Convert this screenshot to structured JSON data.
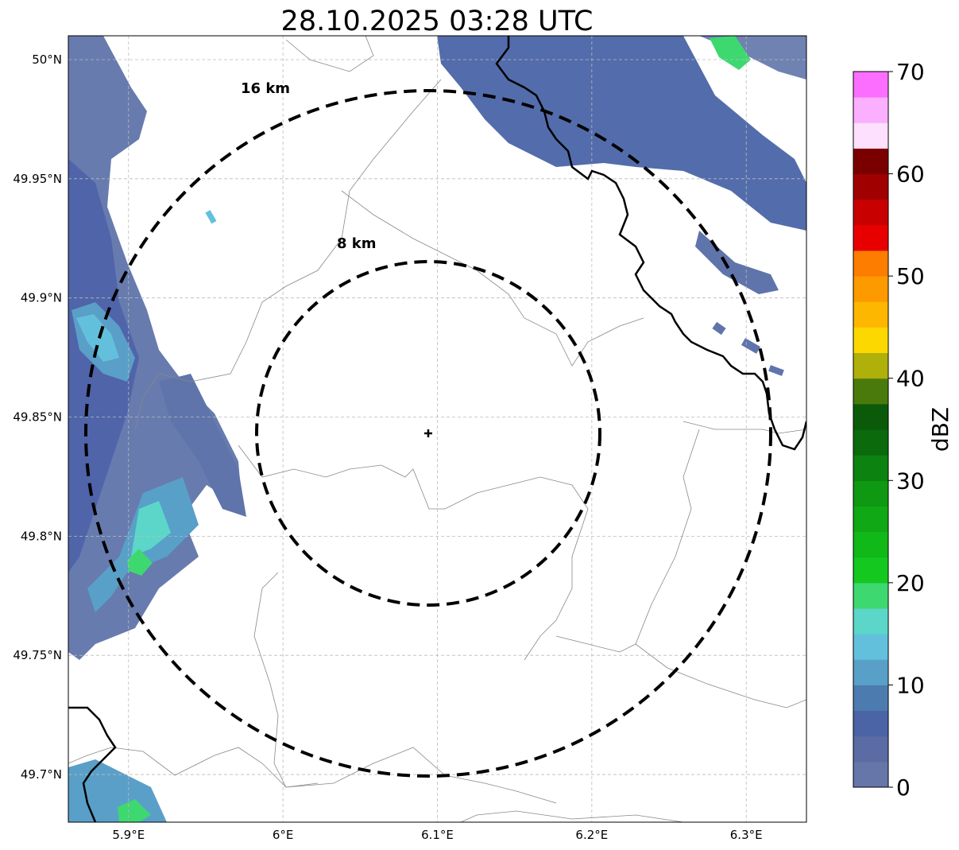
{
  "title": "28.10.2025 03:28 UTC",
  "map": {
    "lon_ticks": [
      "5.9°E",
      "6°E",
      "6.1°E",
      "6.2°E",
      "6.3°E"
    ],
    "lat_ticks": [
      "50°N",
      "49.95°N",
      "49.9°N",
      "49.85°N",
      "49.8°N",
      "49.75°N",
      "49.7°N"
    ],
    "lon_values": [
      5.9,
      6.0,
      6.1,
      6.2,
      6.3
    ],
    "lat_values": [
      50.0,
      49.95,
      49.9,
      49.85,
      49.8,
      49.75,
      49.7
    ],
    "extent": {
      "lon_min": 5.861,
      "lon_max": 6.339,
      "lat_min": 49.68,
      "lat_max": 50.01
    },
    "radar_site": {
      "lon": 6.095,
      "lat": 49.843
    },
    "ring_labels": [
      "16 km",
      "8 km"
    ],
    "ring_radii_km": [
      16,
      8
    ],
    "ring_style": "dashed black",
    "gridlines": true
  },
  "colorbar": {
    "label": "dBZ",
    "tick_labels": [
      "0",
      "10",
      "20",
      "30",
      "40",
      "50",
      "60",
      "70"
    ],
    "min": 0,
    "max": 70,
    "step": 2.5,
    "colors": [
      "#6676a8",
      "#5a6ca3",
      "#4a64a6",
      "#4c7bb0",
      "#58a0c8",
      "#63c0dc",
      "#5cd6c8",
      "#3ed870",
      "#14c820",
      "#10b818",
      "#10a814",
      "#0f9812",
      "#0c8210",
      "#0a6a0c",
      "#0a5a0a",
      "#4a7a0c",
      "#afb00a",
      "#fdd700",
      "#fdb700",
      "#fd9a00",
      "#fd7d00",
      "#e80000",
      "#c80000",
      "#a00000",
      "#7a0000",
      "#fde0fd",
      "#fbafff",
      "#fb6eff",
      "#f030f0"
    ]
  }
}
